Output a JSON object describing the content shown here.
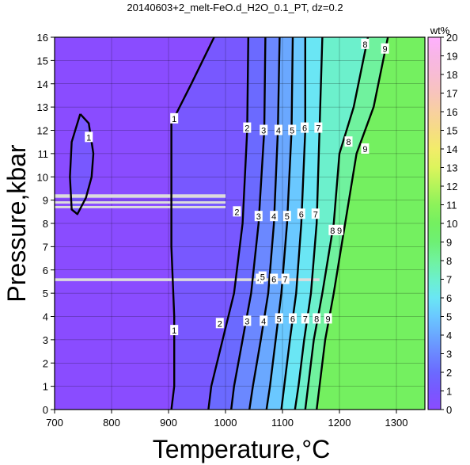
{
  "chart_data": {
    "type": "heatmap",
    "title": "20140603+2_melt-FeO.d_H2O_0.1_PT, dz=0.2",
    "xlabel": "Temperature,°C",
    "ylabel": "Pressure,kbar",
    "xlim": [
      700,
      1350
    ],
    "ylim": [
      0,
      16
    ],
    "x_ticks": [
      700,
      800,
      900,
      1000,
      1100,
      1200,
      1300
    ],
    "y_ticks": [
      0,
      1,
      2,
      3,
      4,
      5,
      6,
      7,
      8,
      9,
      10,
      11,
      12,
      13,
      14,
      15,
      16
    ],
    "grid": true,
    "colorbar": {
      "label": "wt%",
      "min": 0,
      "max": 20,
      "ticks": [
        0,
        1,
        2,
        3,
        4,
        5,
        6,
        7,
        8,
        9,
        10,
        11,
        12,
        13,
        14,
        15,
        16,
        17,
        18,
        19,
        20
      ],
      "colors": [
        {
          "v": 0,
          "c": "#8a4cff"
        },
        {
          "v": 1,
          "c": "#7858ff"
        },
        {
          "v": 2,
          "c": "#6b6aff"
        },
        {
          "v": 3,
          "c": "#6b88ff"
        },
        {
          "v": 4,
          "c": "#6aa8ff"
        },
        {
          "v": 5,
          "c": "#6ac8ff"
        },
        {
          "v": 6,
          "c": "#6ae6f4"
        },
        {
          "v": 7,
          "c": "#6cf0cc"
        },
        {
          "v": 8,
          "c": "#70f29e"
        },
        {
          "v": 9,
          "c": "#6ef074"
        },
        {
          "v": 10,
          "c": "#74f060"
        },
        {
          "v": 11,
          "c": "#8cf25a"
        },
        {
          "v": 12,
          "c": "#b4f45a"
        },
        {
          "v": 13,
          "c": "#dcf45c"
        },
        {
          "v": 14,
          "c": "#f2ec6a"
        },
        {
          "v": 15,
          "c": "#f6dc84"
        },
        {
          "v": 16,
          "c": "#f8d0a0"
        },
        {
          "v": 17,
          "c": "#f8c4bc"
        },
        {
          "v": 18,
          "c": "#f8bcd4"
        },
        {
          "v": 19,
          "c": "#f8b6e6"
        },
        {
          "v": 20,
          "c": "#ffb0ff"
        }
      ]
    },
    "contours": [
      {
        "level": 1,
        "points": [
          [
            980,
            16
          ],
          [
            940,
            14
          ],
          [
            905,
            12.3
          ],
          [
            905,
            10
          ],
          [
            905,
            7
          ],
          [
            910,
            4
          ],
          [
            910,
            1
          ],
          [
            905,
            0
          ]
        ]
      },
      {
        "level": 2,
        "points": [
          [
            1040,
            16
          ],
          [
            1038,
            12
          ],
          [
            1030,
            8
          ],
          [
            1015,
            5
          ],
          [
            995,
            3
          ],
          [
            975,
            1
          ],
          [
            970,
            0
          ]
        ]
      },
      {
        "level": 3,
        "points": [
          [
            1070,
            16
          ],
          [
            1068,
            12
          ],
          [
            1058,
            8
          ],
          [
            1045,
            5
          ],
          [
            1030,
            3
          ],
          [
            1015,
            1
          ],
          [
            1010,
            0
          ]
        ]
      },
      {
        "level": 4,
        "points": [
          [
            1095,
            16
          ],
          [
            1092,
            12
          ],
          [
            1085,
            8
          ],
          [
            1075,
            5
          ],
          [
            1062,
            3
          ],
          [
            1048,
            1
          ],
          [
            1042,
            0
          ]
        ]
      },
      {
        "level": 5,
        "points": [
          [
            1118,
            16
          ],
          [
            1116,
            12
          ],
          [
            1108,
            8
          ],
          [
            1098,
            5
          ],
          [
            1088,
            3
          ],
          [
            1078,
            1
          ],
          [
            1072,
            0
          ]
        ]
      },
      {
        "level": 6,
        "points": [
          [
            1140,
            16
          ],
          [
            1140,
            12
          ],
          [
            1133,
            8
          ],
          [
            1124,
            5
          ],
          [
            1113,
            3
          ],
          [
            1103,
            1
          ],
          [
            1098,
            0
          ]
        ]
      },
      {
        "level": 7,
        "points": [
          [
            1170,
            16
          ],
          [
            1165,
            12
          ],
          [
            1160,
            8
          ],
          [
            1150,
            5
          ],
          [
            1138,
            3
          ],
          [
            1128,
            1
          ],
          [
            1122,
            0
          ]
        ]
      },
      {
        "level": 8,
        "points": [
          [
            1250,
            16
          ],
          [
            1225,
            13
          ],
          [
            1200,
            11
          ],
          [
            1190,
            8
          ],
          [
            1170,
            5
          ],
          [
            1155,
            3
          ],
          [
            1145,
            1
          ],
          [
            1140,
            0
          ]
        ]
      },
      {
        "level": 9,
        "points": [
          [
            1285,
            16
          ],
          [
            1260,
            13
          ],
          [
            1230,
            11
          ],
          [
            1210,
            8
          ],
          [
            1190,
            5
          ],
          [
            1175,
            3
          ],
          [
            1165,
            1
          ],
          [
            1160,
            0
          ]
        ]
      }
    ],
    "loop_contour": {
      "level": 1,
      "points": [
        [
          745,
          12.7
        ],
        [
          760,
          12.3
        ],
        [
          768,
          11
        ],
        [
          765,
          10
        ],
        [
          755,
          9.1
        ],
        [
          740,
          8.4
        ],
        [
          730,
          8.6
        ],
        [
          727,
          10
        ],
        [
          730,
          11.5
        ],
        [
          745,
          12.7
        ]
      ]
    },
    "contour_labels": [
      {
        "text": "1",
        "x": 910,
        "y": 12.5
      },
      {
        "text": "1",
        "x": 910,
        "y": 3.4
      },
      {
        "text": "1",
        "x": 760,
        "y": 11.7
      },
      {
        "text": "2",
        "x": 1038,
        "y": 12.1
      },
      {
        "text": "2",
        "x": 1020,
        "y": 8.5
      },
      {
        "text": "2",
        "x": 990,
        "y": 3.7
      },
      {
        "text": "3",
        "x": 1067,
        "y": 12
      },
      {
        "text": "3",
        "x": 1058,
        "y": 8.3
      },
      {
        "text": "3",
        "x": 1038,
        "y": 3.8
      },
      {
        "text": "4",
        "x": 1093,
        "y": 12
      },
      {
        "text": "4",
        "x": 1085,
        "y": 8.3
      },
      {
        "text": "4",
        "x": 1067,
        "y": 3.8
      },
      {
        "text": "5",
        "x": 1117,
        "y": 12
      },
      {
        "text": "5",
        "x": 1108,
        "y": 8.3
      },
      {
        "text": "5",
        "x": 1094,
        "y": 3.9
      },
      {
        "text": "6",
        "x": 1139,
        "y": 12.1
      },
      {
        "text": "6",
        "x": 1133,
        "y": 8.4
      },
      {
        "text": "6",
        "x": 1118,
        "y": 3.9
      },
      {
        "text": "7",
        "x": 1163,
        "y": 12.1
      },
      {
        "text": "7",
        "x": 1158,
        "y": 8.4
      },
      {
        "text": "7",
        "x": 1140,
        "y": 3.9
      },
      {
        "text": "8",
        "x": 1245,
        "y": 15.7
      },
      {
        "text": "8",
        "x": 1216,
        "y": 11.5
      },
      {
        "text": "8",
        "x": 1188,
        "y": 7.7
      },
      {
        "text": "8",
        "x": 1160,
        "y": 3.9
      },
      {
        "text": "9",
        "x": 1280,
        "y": 15.5
      },
      {
        "text": "9",
        "x": 1245,
        "y": 11.2
      },
      {
        "text": "9",
        "x": 1200,
        "y": 7.7
      },
      {
        "text": "9",
        "x": 1180,
        "y": 3.9
      },
      {
        "text": "4",
        "x": 1060,
        "y": 5.6
      },
      {
        "text": "5",
        "x": 1065,
        "y": 5.7
      },
      {
        "text": "6",
        "x": 1085,
        "y": 5.6
      },
      {
        "text": "7",
        "x": 1105,
        "y": 5.6
      }
    ],
    "gaps": [
      {
        "x0": 700,
        "x1": 1000,
        "y0": 9.1,
        "y1": 9.25
      },
      {
        "x0": 700,
        "x1": 1000,
        "y0": 8.85,
        "y1": 8.95
      },
      {
        "x0": 700,
        "x1": 1000,
        "y0": 8.65,
        "y1": 8.75
      },
      {
        "x0": 700,
        "x1": 1165,
        "y0": 5.52,
        "y1": 5.64
      }
    ]
  }
}
